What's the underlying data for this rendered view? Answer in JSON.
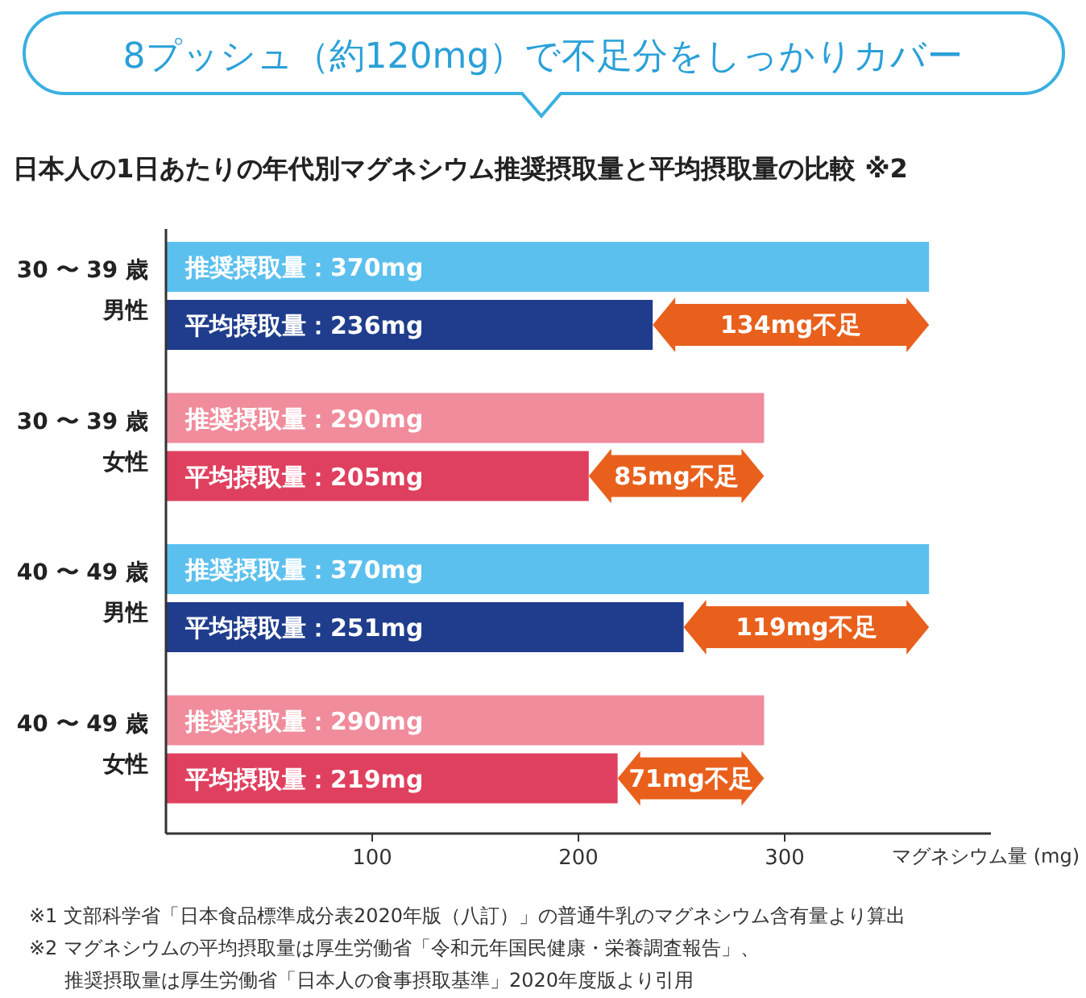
{
  "chart_data": {
    "type": "bar",
    "orientation": "horizontal",
    "title": "8プッシュ（約120mg）で不足分をしっかりカバー",
    "subtitle": "日本人の1日あたりの年代別マグネシウム推奨摂取量と平均摂取量の比較 ※2",
    "categories": [
      "30 〜 39 歳男性",
      "30 〜 39 歳女性",
      "40 〜 49 歳男性",
      "40 〜 49 歳女性"
    ],
    "series": [
      {
        "values": [
          370,
          290,
          370,
          290
        ],
        "colors": [
          "#5cc0ee",
          "#f08c9c",
          "#5cc0ee",
          "#f08c9c"
        ],
        "value_labels": [
          "推奨摂取量：370mg",
          "推奨摂取量：290mg",
          "推奨摂取量：370mg",
          "推奨摂取量：290mg"
        ]
      },
      {
        "values": [
          236,
          205,
          251,
          219
        ],
        "colors": [
          "#1f3d8c",
          "#e0405f",
          "#1f3d8c",
          "#e0405f"
        ],
        "value_labels": [
          "平均摂取量：236mg",
          "平均摂取量：205mg",
          "平均摂取量：251mg",
          "平均摂取量：219mg"
        ]
      }
    ],
    "xlim": [
      0,
      400
    ],
    "xticks": [
      100,
      200,
      300
    ],
    "xlabel": "マグネシウム量 (mg)",
    "annotations": [
      "134mg不足",
      "85mg不足",
      "119mg不足",
      "71mg不足",
      "※1 文部科学省「日本食品標準成分表2020年版（八訂）」の普通牛乳のマグネシウム含有量より算出",
      "※2 マグネシウムの平均摂取量は厚生労働省「令和元年国民健康・栄養調査報告」、推奨摂取量は厚生労働省「日本人の食事摂取基準」2020年度版より引用"
    ]
  }
}
